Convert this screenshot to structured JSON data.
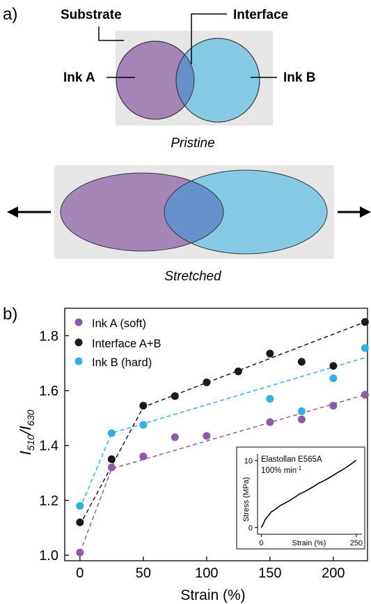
{
  "panel_a": {
    "label": "a)",
    "callouts": {
      "substrate": "Substrate",
      "interface": "Interface",
      "ink_a": "Ink A",
      "ink_b": "Ink B"
    },
    "captions": {
      "pristine": "Pristine",
      "stretched": "Stretched"
    },
    "colors": {
      "ink_a": "#a585b8",
      "ink_b": "#85c9e5",
      "overlap": "#6590c9",
      "substrate": "#e6e6e6"
    }
  },
  "panel_b": {
    "label": "b)"
  },
  "chart_data": [
    {
      "type": "scatter",
      "xlabel": "Strain (%)",
      "ylabel_main": "I",
      "ylabel_sub1": "510",
      "ylabel_sep": "/I",
      "ylabel_sub2": "630",
      "xlim": [
        -12,
        227
      ],
      "ylim": [
        0.98,
        1.9
      ],
      "x_ticks": [
        0,
        50,
        100,
        150,
        200
      ],
      "y_ticks": [
        1.0,
        1.2,
        1.4,
        1.6,
        1.8
      ],
      "y_tick_labels": [
        "1.0",
        "1.2",
        "1.4",
        "1.6",
        "1.8"
      ],
      "legend_position": "top-left",
      "series": [
        {
          "name": "Ink A (soft)",
          "color": "#8c5aa8",
          "x": [
            0,
            25,
            50,
            75,
            100,
            150,
            175,
            200,
            225
          ],
          "y": [
            1.01,
            1.32,
            1.36,
            1.43,
            1.435,
            1.485,
            1.495,
            1.545,
            1.585
          ],
          "fit": [
            [
              0,
              1.01
            ],
            [
              25,
              1.315
            ],
            [
              225,
              1.585
            ]
          ]
        },
        {
          "name": "Interface A+B",
          "color": "#1a1a1a",
          "x": [
            0,
            25,
            50,
            75,
            100,
            125,
            150,
            175,
            200,
            225
          ],
          "y": [
            1.12,
            1.35,
            1.545,
            1.58,
            1.63,
            1.67,
            1.735,
            1.705,
            1.69,
            1.85
          ],
          "fit": [
            [
              0,
              1.11
            ],
            [
              50,
              1.54
            ],
            [
              225,
              1.85
            ]
          ]
        },
        {
          "name": "Ink B (hard)",
          "color": "#2eb0e8",
          "x": [
            0,
            25,
            50,
            150,
            175,
            200,
            225
          ],
          "y": [
            1.18,
            1.445,
            1.475,
            1.57,
            1.525,
            1.645,
            1.755
          ],
          "fit": [
            [
              0,
              1.17
            ],
            [
              25,
              1.445
            ],
            [
              225,
              1.72
            ]
          ]
        }
      ]
    },
    {
      "type": "line",
      "title": "Elastollan E565A",
      "subtitle_main": "100% min",
      "subtitle_sup": "-1",
      "xlabel": "Strain (%)",
      "ylabel": "Stress (MPa)",
      "xlim": [
        -10,
        265
      ],
      "ylim": [
        -1,
        11
      ],
      "x_ticks": [
        0,
        250
      ],
      "y_ticks": [
        0,
        10
      ],
      "series": [
        {
          "color": "#000000",
          "x": [
            0,
            10,
            25,
            50,
            100,
            150,
            200,
            250
          ],
          "y": [
            0,
            1.2,
            2.3,
            3.3,
            5.0,
            6.6,
            8.2,
            10.1
          ]
        }
      ]
    }
  ]
}
